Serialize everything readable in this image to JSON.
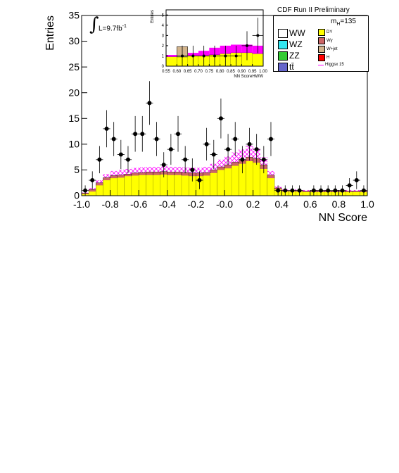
{
  "header": {
    "title": "CDF Run II Preliminary",
    "mass_label": "m",
    "mass_sub": "H",
    "mass_value": "=135",
    "lumi": "L=9.7fb",
    "lumi_sup": "-1",
    "integral_symbol": "∫"
  },
  "legend": {
    "left": [
      {
        "label": "WW",
        "color": "#ffffff"
      },
      {
        "label": "WZ",
        "color": "#33e6f0"
      },
      {
        "label": "ZZ",
        "color": "#33cc33"
      },
      {
        "label": "tt̄",
        "color": "#6666cc"
      }
    ],
    "right": [
      {
        "label": "DY",
        "color": "#ffff00"
      },
      {
        "label": "Wγ",
        "color": "#cc6666"
      },
      {
        "label": "W+jet",
        "color": "#d2b48c"
      },
      {
        "label": "H",
        "color": "#ff0000"
      },
      {
        "label": "Higgsx 15",
        "color": "#ff00ff"
      }
    ]
  },
  "chart_data": [
    {
      "type": "bar",
      "xlabel": "NN Score",
      "ylabel": "Entries",
      "xlim": [
        -1.0,
        1.0
      ],
      "ylim": [
        0,
        35
      ],
      "x_ticks": [
        "-1.0",
        "-0.8",
        "-0.6",
        "-0.4",
        "-0.2",
        "-0.0",
        "0.2",
        "0.4",
        "0.6",
        "0.8",
        "1.0"
      ],
      "y_ticks": [
        "0",
        "5",
        "10",
        "15",
        "20",
        "25",
        "30",
        "35"
      ],
      "bin_edges_start": -1.0,
      "bin_width": 0.05,
      "background_total": [
        0.5,
        1.2,
        2.5,
        3.5,
        3.9,
        4.0,
        4.2,
        4.4,
        4.5,
        4.6,
        4.6,
        4.7,
        4.6,
        4.6,
        4.5,
        4.4,
        4.4,
        4.5,
        5.0,
        5.6,
        6.0,
        6.5,
        7.0,
        7.5,
        7.2,
        6.0,
        4.0,
        1.5,
        1.0,
        1.0,
        1.0,
        0.9,
        0.9,
        0.9,
        0.9,
        0.9,
        0.9,
        0.9,
        0.9,
        0.9
      ],
      "dy_component": [
        0.3,
        0.8,
        2.0,
        3.0,
        3.4,
        3.5,
        3.8,
        3.9,
        4.0,
        4.0,
        4.0,
        4.1,
        4.0,
        4.0,
        3.9,
        3.8,
        3.8,
        3.9,
        4.4,
        5.0,
        5.3,
        5.8,
        6.2,
        6.7,
        6.4,
        5.2,
        3.4,
        1.2,
        0.8,
        0.8,
        0.8,
        0.7,
        0.7,
        0.7,
        0.7,
        0.7,
        0.7,
        0.7,
        0.7,
        0.7
      ],
      "signal_x15_top": [
        0.6,
        1.5,
        3.0,
        4.2,
        4.8,
        5.0,
        5.2,
        5.4,
        5.5,
        5.6,
        5.6,
        5.7,
        5.6,
        5.6,
        5.5,
        5.4,
        5.4,
        5.6,
        6.2,
        7.0,
        7.6,
        8.4,
        9.0,
        9.7,
        9.2,
        7.5,
        4.8,
        1.8,
        1.2,
        1.2,
        1.2,
        1.1,
        1.1,
        1.1,
        1.1,
        1.1,
        1.1,
        1.1,
        1.1,
        1.1
      ],
      "data_points": [
        1,
        3,
        7,
        13,
        11,
        8,
        7,
        12,
        12,
        18,
        11,
        6,
        9,
        12,
        7,
        5,
        3,
        10,
        8,
        15,
        9,
        11,
        7,
        10,
        9,
        7,
        11,
        1,
        1,
        1,
        1,
        0,
        1,
        1,
        1,
        1,
        1,
        2,
        3,
        1
      ]
    },
    {
      "type": "bar",
      "xlabel": "NN ScoreHWW",
      "ylabel": "Entries",
      "xlim": [
        0.55,
        1.0
      ],
      "ylim": [
        0,
        5.5
      ],
      "x_ticks": [
        "0.55",
        "0.60",
        "0.65",
        "0.70",
        "0.75",
        "0.80",
        "0.85",
        "0.90",
        "0.95",
        "1.00"
      ],
      "y_ticks": [
        "0",
        "1",
        "2",
        "3",
        "4",
        "5"
      ],
      "bin_edges_start": 0.55,
      "bin_width": 0.05,
      "background_total": [
        0.9,
        1.9,
        1.0,
        1.0,
        1.1,
        1.2,
        1.3,
        1.3,
        1.2
      ],
      "wjet_component": [
        0.0,
        1.0,
        0.0,
        0.0,
        0.0,
        0.0,
        0.0,
        0.0,
        0.0
      ],
      "signal_x15_top": [
        1.1,
        1.2,
        1.3,
        1.5,
        1.8,
        2.0,
        2.1,
        2.1,
        2.0
      ],
      "data_points": [
        0,
        1,
        1,
        1,
        1,
        1,
        1,
        2,
        3
      ]
    }
  ]
}
